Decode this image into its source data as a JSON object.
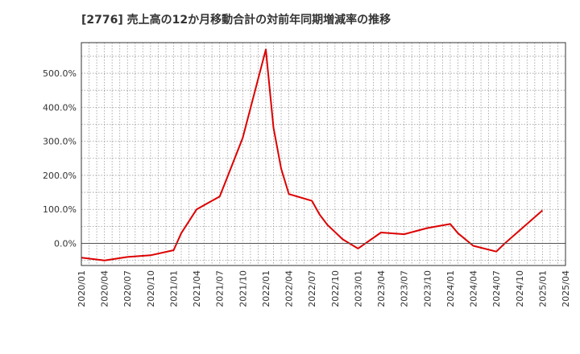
{
  "chart_data": {
    "type": "line",
    "title": "[2776]  売上高の12か月移動合計の対前年同期増減率の推移",
    "xlabel": "",
    "ylabel": "",
    "ylim": [
      -65,
      590
    ],
    "yticks": [
      0,
      100,
      200,
      300,
      400,
      500
    ],
    "ytick_labels": [
      "0.0%",
      "100.0%",
      "200.0%",
      "300.0%",
      "400.0%",
      "500.0%"
    ],
    "xlim": [
      "2020/01",
      "2025/04"
    ],
    "xtick_labels": [
      "2020/01",
      "2020/04",
      "2020/07",
      "2020/10",
      "2021/01",
      "2021/04",
      "2021/07",
      "2021/10",
      "2022/01",
      "2022/04",
      "2022/07",
      "2022/10",
      "2023/01",
      "2023/04",
      "2023/07",
      "2023/10",
      "2024/01",
      "2024/04",
      "2024/07",
      "2024/10",
      "2025/01",
      "2025/04"
    ],
    "grid": true,
    "series": [
      {
        "name": "対前年同期増減率",
        "color": "#dd0000",
        "x": [
          "2020/01",
          "2020/04",
          "2020/07",
          "2020/10",
          "2021/01",
          "2021/02",
          "2021/04",
          "2021/07",
          "2021/08",
          "2021/10",
          "2022/01",
          "2022/02",
          "2022/03",
          "2022/04",
          "2022/07",
          "2022/08",
          "2022/09",
          "2022/11",
          "2023/01",
          "2023/04",
          "2023/07",
          "2023/10",
          "2024/01",
          "2024/02",
          "2024/04",
          "2024/07",
          "2024/08",
          "2025/01"
        ],
        "values": [
          -42,
          -50,
          -40,
          -35,
          -20,
          30,
          100,
          138,
          195,
          310,
          570,
          340,
          220,
          145,
          125,
          85,
          55,
          12,
          -15,
          32,
          27,
          45,
          57,
          30,
          -7,
          -24,
          -2,
          97
        ]
      }
    ]
  }
}
